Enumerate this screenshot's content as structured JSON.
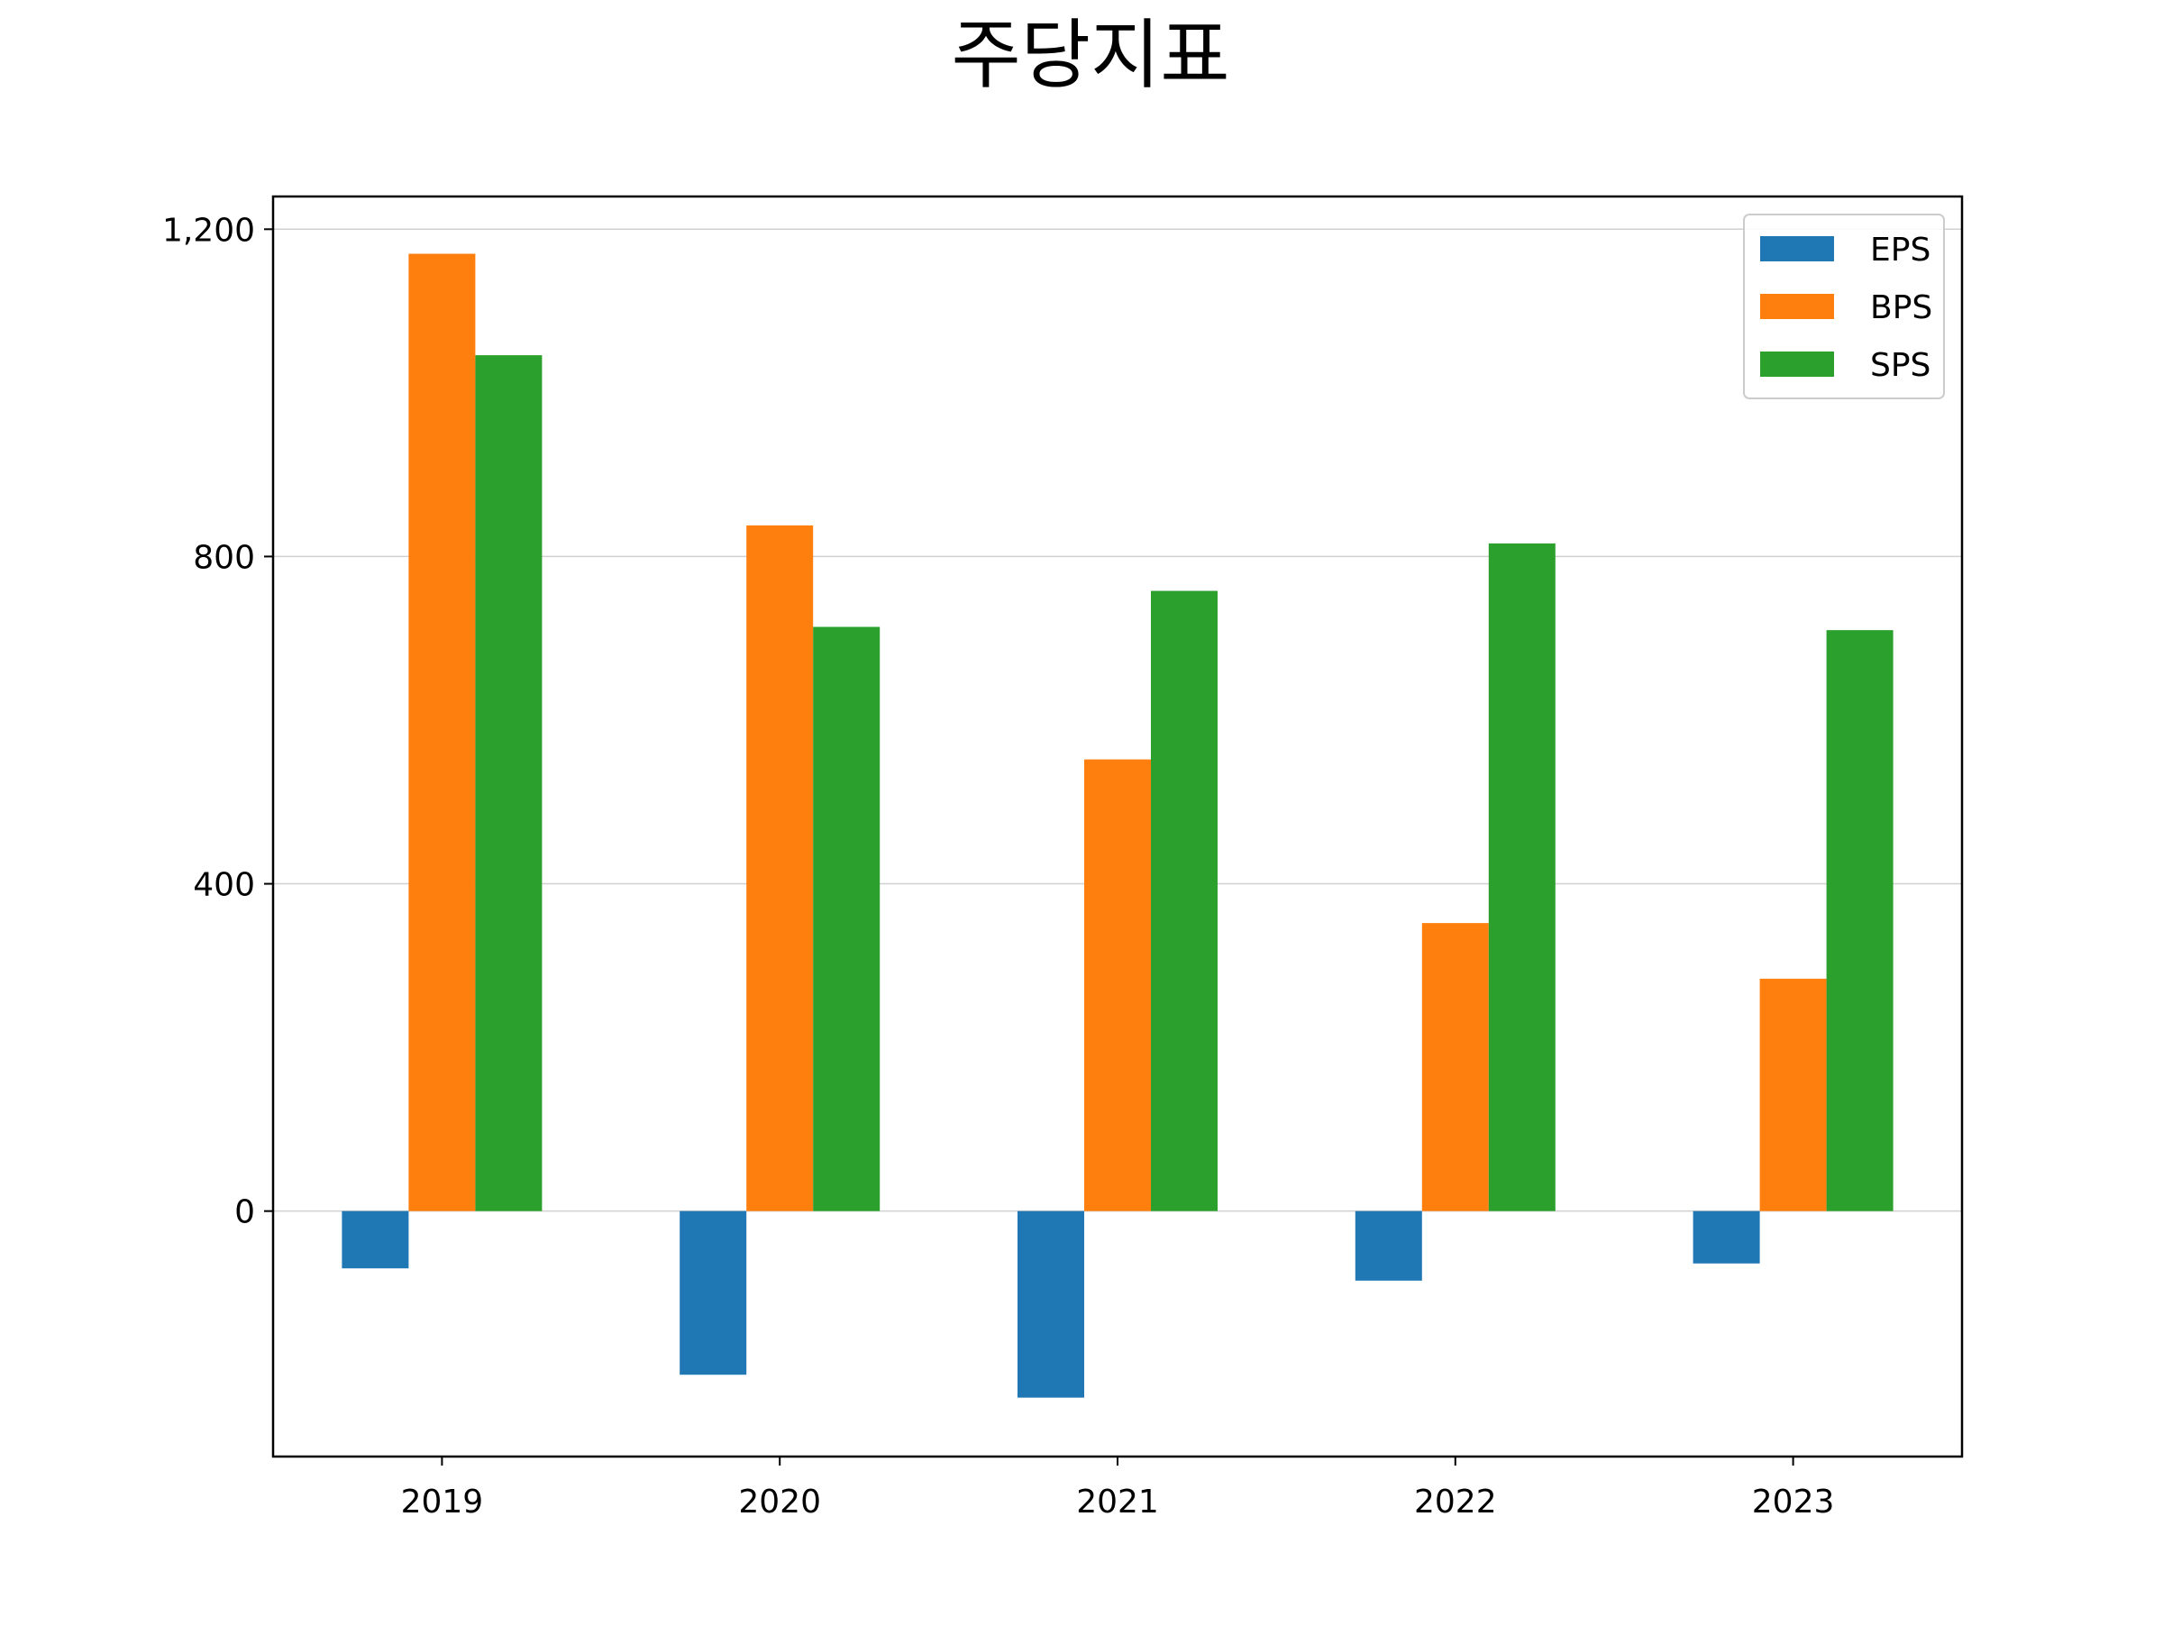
{
  "chart_data": {
    "type": "bar",
    "title": "주당지표",
    "xlabel": "",
    "ylabel": "",
    "categories": [
      "2019",
      "2020",
      "2021",
      "2022",
      "2023"
    ],
    "series": [
      {
        "name": "EPS",
        "color": "#1f77b4",
        "values": [
          -70,
          -200,
          -228,
          -85,
          -64
        ]
      },
      {
        "name": "BPS",
        "color": "#ff7f0e",
        "values": [
          1170,
          838,
          552,
          352,
          284
        ]
      },
      {
        "name": "SPS",
        "color": "#2ca02c",
        "values": [
          1046,
          714,
          758,
          816,
          710
        ]
      }
    ],
    "ylim": [
      -300,
      1240
    ],
    "yticks": [
      0,
      400,
      800,
      1200
    ],
    "ytick_labels": [
      "0",
      "400",
      "800",
      "1,200"
    ],
    "grid": "y",
    "legend_position": "upper right"
  }
}
